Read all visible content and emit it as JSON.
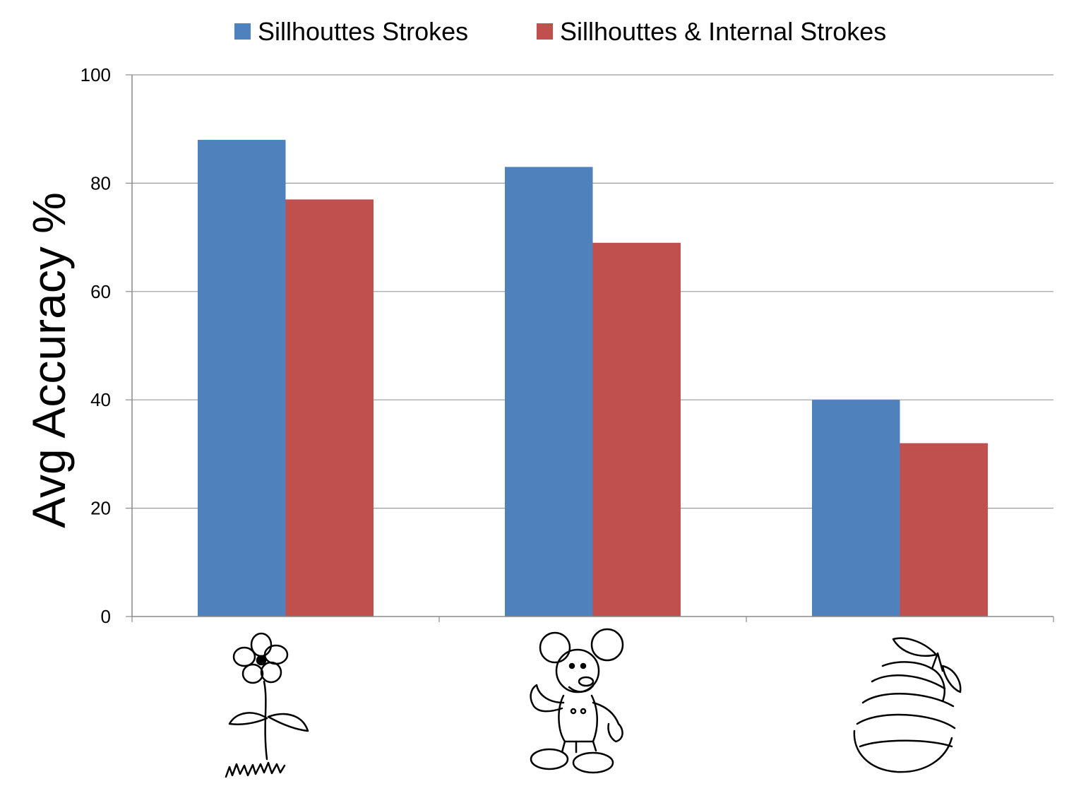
{
  "chart_data": {
    "type": "bar",
    "title": "",
    "xlabel": "",
    "ylabel": "Avg Accuracy %",
    "ylim": [
      0,
      100
    ],
    "yticks": [
      0,
      20,
      40,
      60,
      80,
      100
    ],
    "categories": [
      "flower-drawing",
      "mickey-mouse-drawing",
      "apple-drawing"
    ],
    "series": [
      {
        "name": "Sillhouttes Strokes",
        "color": "#4F81BD",
        "values": [
          88,
          83,
          40
        ]
      },
      {
        "name": "Sillhouttes & Internal Strokes",
        "color": "#C0504D",
        "values": [
          77,
          69,
          32
        ]
      }
    ],
    "grid": true,
    "legend": "top-center"
  }
}
